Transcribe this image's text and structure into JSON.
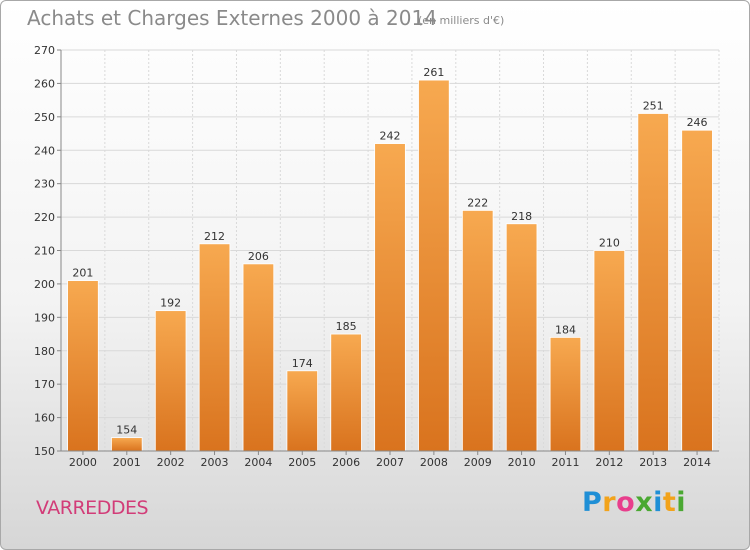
{
  "header": {
    "title": "Achats et Charges Externes 2000 à 2014",
    "unit": "(en milliers d'€)"
  },
  "footer": {
    "place": "VARREDDES",
    "brand": {
      "letters": [
        "P",
        "r",
        "o",
        "x",
        "i",
        "t",
        "i"
      ],
      "colors": [
        "#1f8fd6",
        "#f2a31b",
        "#e83e8c",
        "#4aa832",
        "#1f8fd6",
        "#f2a31b",
        "#4aa832"
      ]
    }
  },
  "chart_data": {
    "type": "bar",
    "title": "Achats et Charges Externes 2000 à 2014",
    "subtitle": "(en milliers d'€)",
    "xlabel": "",
    "ylabel": "",
    "categories": [
      "2000",
      "2001",
      "2002",
      "2003",
      "2004",
      "2005",
      "2006",
      "2007",
      "2008",
      "2009",
      "2010",
      "2011",
      "2012",
      "2013",
      "2014"
    ],
    "values": [
      201,
      154,
      192,
      212,
      206,
      174,
      185,
      242,
      261,
      222,
      218,
      184,
      210,
      251,
      246
    ],
    "ylim": [
      150,
      270
    ],
    "yticks": [
      150,
      160,
      170,
      180,
      190,
      200,
      210,
      220,
      230,
      240,
      250,
      260,
      270
    ],
    "grid": true,
    "legend": "none",
    "colors": {
      "bar_light": "#f7a950",
      "bar_dark": "#d9731e",
      "grid": "#d9d9d9",
      "axis": "#888888"
    }
  }
}
